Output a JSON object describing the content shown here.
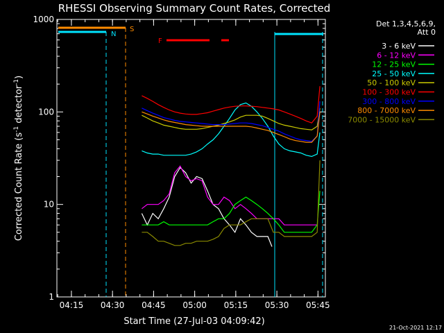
{
  "chart_data": {
    "type": "line",
    "title": "RHESSI Observing Summary Count Rates, Corrected",
    "xlabel": "Start Time (27-Jul-03 04:09:42)",
    "ylabel_main": "Corrected Count Rate (s",
    "ylabel_sup1": "-1",
    "ylabel_mid": " detector",
    "ylabel_sup2": "-1",
    "ylabel_end": ")",
    "y_scale": "log",
    "ylim": [
      1,
      1000
    ],
    "xlim_minutes": [
      0,
      98
    ],
    "x_ticks": [
      {
        "minute": 5.3,
        "label": "04:15"
      },
      {
        "minute": 20.3,
        "label": "04:30"
      },
      {
        "minute": 35.3,
        "label": "04:45"
      },
      {
        "minute": 50.3,
        "label": "05:00"
      },
      {
        "minute": 65.3,
        "label": "05:15"
      },
      {
        "minute": 80.3,
        "label": "05:30"
      },
      {
        "minute": 95.3,
        "label": "05:45"
      }
    ],
    "y_ticks": [
      {
        "value": 1,
        "label": "1"
      },
      {
        "value": 10,
        "label": "10"
      },
      {
        "value": 100,
        "label": "100"
      },
      {
        "value": 1000,
        "label": "1000"
      }
    ],
    "legend_header": [
      "Det 1,3,4,5,6,9,",
      "Att 0"
    ],
    "legend_position": "right",
    "series": [
      {
        "name": "3 - 6 keV",
        "color": "#ffffff",
        "points": [
          [
            31,
            8
          ],
          [
            33,
            6
          ],
          [
            35,
            8
          ],
          [
            37,
            7
          ],
          [
            39,
            9
          ],
          [
            41,
            12
          ],
          [
            43,
            20
          ],
          [
            45,
            25
          ],
          [
            47,
            22
          ],
          [
            49,
            17
          ],
          [
            51,
            20
          ],
          [
            53,
            19
          ],
          [
            55,
            14
          ],
          [
            57,
            10
          ],
          [
            59,
            9
          ],
          [
            61,
            7
          ],
          [
            63,
            6
          ],
          [
            65,
            5
          ],
          [
            67,
            7
          ],
          [
            69,
            6
          ],
          [
            71,
            5
          ],
          [
            73,
            4.5
          ],
          [
            75,
            4.5
          ],
          [
            77,
            4.5
          ],
          [
            78.5,
            3.5
          ]
        ]
      },
      {
        "name": "6 - 12 keV",
        "color": "#ff00ff",
        "points": [
          [
            31,
            9
          ],
          [
            33,
            10
          ],
          [
            35,
            10
          ],
          [
            37,
            10
          ],
          [
            39,
            11
          ],
          [
            41,
            13
          ],
          [
            43,
            22
          ],
          [
            45,
            26
          ],
          [
            47,
            20
          ],
          [
            49,
            18
          ],
          [
            51,
            19
          ],
          [
            53,
            18
          ],
          [
            55,
            12
          ],
          [
            57,
            10
          ],
          [
            59,
            10
          ],
          [
            61,
            12
          ],
          [
            63,
            11
          ],
          [
            65,
            9
          ],
          [
            67,
            10
          ],
          [
            69,
            9
          ],
          [
            71,
            8
          ],
          [
            73,
            7
          ],
          [
            75,
            7
          ],
          [
            77,
            7
          ],
          [
            79,
            7
          ],
          [
            81,
            7
          ],
          [
            83,
            6
          ],
          [
            85,
            6
          ],
          [
            87,
            6
          ],
          [
            89,
            6
          ],
          [
            91,
            6
          ],
          [
            93,
            6
          ],
          [
            95,
            6
          ]
        ]
      },
      {
        "name": "12 - 25 keV",
        "color": "#00ff00",
        "points": [
          [
            31,
            6
          ],
          [
            33,
            6
          ],
          [
            35,
            6
          ],
          [
            37,
            6
          ],
          [
            39,
            6.5
          ],
          [
            41,
            6
          ],
          [
            43,
            6
          ],
          [
            45,
            6
          ],
          [
            47,
            6
          ],
          [
            49,
            6
          ],
          [
            51,
            6
          ],
          [
            53,
            6
          ],
          [
            55,
            6
          ],
          [
            57,
            6.5
          ],
          [
            59,
            7
          ],
          [
            61,
            7
          ],
          [
            63,
            8
          ],
          [
            65,
            10
          ],
          [
            67,
            11
          ],
          [
            69,
            12
          ],
          [
            71,
            11
          ],
          [
            73,
            10
          ],
          [
            75,
            9
          ],
          [
            77,
            8
          ],
          [
            79,
            7
          ],
          [
            81,
            6
          ],
          [
            83,
            5
          ],
          [
            85,
            5
          ],
          [
            87,
            5
          ],
          [
            89,
            5
          ],
          [
            91,
            5
          ],
          [
            93,
            5
          ],
          [
            95,
            6
          ],
          [
            96,
            14
          ]
        ]
      },
      {
        "name": "25 - 50 keV",
        "color": "#00ffff",
        "points": [
          [
            31,
            38
          ],
          [
            33,
            36
          ],
          [
            35,
            35
          ],
          [
            37,
            35
          ],
          [
            39,
            34
          ],
          [
            41,
            34
          ],
          [
            43,
            34
          ],
          [
            45,
            34
          ],
          [
            47,
            34
          ],
          [
            49,
            35
          ],
          [
            51,
            37
          ],
          [
            53,
            40
          ],
          [
            55,
            45
          ],
          [
            57,
            50
          ],
          [
            59,
            58
          ],
          [
            61,
            70
          ],
          [
            63,
            85
          ],
          [
            65,
            105
          ],
          [
            67,
            120
          ],
          [
            69,
            125
          ],
          [
            71,
            115
          ],
          [
            73,
            100
          ],
          [
            75,
            85
          ],
          [
            77,
            70
          ],
          [
            79,
            55
          ],
          [
            81,
            45
          ],
          [
            83,
            40
          ],
          [
            85,
            38
          ],
          [
            87,
            37
          ],
          [
            89,
            36
          ],
          [
            91,
            34
          ],
          [
            93,
            33
          ],
          [
            95,
            35
          ],
          [
            96,
            60
          ]
        ]
      },
      {
        "name": "50 - 100 keV",
        "color": "#cccc00",
        "points": [
          [
            31,
            92
          ],
          [
            33,
            86
          ],
          [
            35,
            80
          ],
          [
            37,
            76
          ],
          [
            39,
            72
          ],
          [
            41,
            70
          ],
          [
            43,
            68
          ],
          [
            45,
            66
          ],
          [
            47,
            65
          ],
          [
            49,
            65
          ],
          [
            51,
            65
          ],
          [
            53,
            66
          ],
          [
            55,
            68
          ],
          [
            57,
            70
          ],
          [
            59,
            72
          ],
          [
            61,
            75
          ],
          [
            63,
            78
          ],
          [
            65,
            82
          ],
          [
            67,
            88
          ],
          [
            69,
            92
          ],
          [
            71,
            92
          ],
          [
            73,
            92
          ],
          [
            75,
            90
          ],
          [
            77,
            85
          ],
          [
            79,
            80
          ],
          [
            81,
            75
          ],
          [
            83,
            72
          ],
          [
            85,
            70
          ],
          [
            87,
            68
          ],
          [
            89,
            66
          ],
          [
            91,
            65
          ],
          [
            93,
            64
          ],
          [
            95,
            70
          ],
          [
            96,
            110
          ]
        ]
      },
      {
        "name": "100 - 300 keV",
        "color": "#ff0000",
        "points": [
          [
            31,
            150
          ],
          [
            33,
            140
          ],
          [
            35,
            130
          ],
          [
            37,
            120
          ],
          [
            39,
            112
          ],
          [
            41,
            105
          ],
          [
            43,
            100
          ],
          [
            45,
            97
          ],
          [
            47,
            95
          ],
          [
            49,
            94
          ],
          [
            51,
            94
          ],
          [
            53,
            96
          ],
          [
            55,
            98
          ],
          [
            57,
            102
          ],
          [
            59,
            106
          ],
          [
            61,
            110
          ],
          [
            63,
            113
          ],
          [
            65,
            115
          ],
          [
            67,
            116
          ],
          [
            69,
            116
          ],
          [
            71,
            115
          ],
          [
            73,
            114
          ],
          [
            75,
            112
          ],
          [
            77,
            110
          ],
          [
            79,
            108
          ],
          [
            81,
            105
          ],
          [
            83,
            100
          ],
          [
            85,
            95
          ],
          [
            87,
            90
          ],
          [
            89,
            85
          ],
          [
            91,
            80
          ],
          [
            93,
            76
          ],
          [
            95,
            90
          ],
          [
            96,
            190
          ]
        ]
      },
      {
        "name": "300 - 800 keV",
        "color": "#0000ff",
        "points": [
          [
            31,
            110
          ],
          [
            33,
            103
          ],
          [
            35,
            97
          ],
          [
            37,
            92
          ],
          [
            39,
            87
          ],
          [
            41,
            84
          ],
          [
            43,
            81
          ],
          [
            45,
            79
          ],
          [
            47,
            78
          ],
          [
            49,
            77
          ],
          [
            51,
            76
          ],
          [
            53,
            75
          ],
          [
            55,
            74
          ],
          [
            57,
            73
          ],
          [
            59,
            73
          ],
          [
            61,
            73
          ],
          [
            63,
            74
          ],
          [
            65,
            75
          ],
          [
            67,
            76
          ],
          [
            69,
            76
          ],
          [
            71,
            75
          ],
          [
            73,
            73
          ],
          [
            75,
            71
          ],
          [
            77,
            68
          ],
          [
            79,
            65
          ],
          [
            81,
            62
          ],
          [
            83,
            58
          ],
          [
            85,
            55
          ],
          [
            87,
            52
          ],
          [
            89,
            50
          ],
          [
            91,
            49
          ],
          [
            93,
            48
          ],
          [
            95,
            55
          ],
          [
            96,
            130
          ]
        ]
      },
      {
        "name": "800 - 7000 keV",
        "color": "#ff8c00",
        "points": [
          [
            31,
            100
          ],
          [
            33,
            95
          ],
          [
            35,
            90
          ],
          [
            37,
            86
          ],
          [
            39,
            82
          ],
          [
            41,
            79
          ],
          [
            43,
            77
          ],
          [
            45,
            75
          ],
          [
            47,
            73
          ],
          [
            49,
            72
          ],
          [
            51,
            71
          ],
          [
            53,
            70
          ],
          [
            55,
            70
          ],
          [
            57,
            70
          ],
          [
            59,
            70
          ],
          [
            61,
            70
          ],
          [
            63,
            70
          ],
          [
            65,
            70
          ],
          [
            67,
            70
          ],
          [
            69,
            70
          ],
          [
            71,
            69
          ],
          [
            73,
            67
          ],
          [
            75,
            65
          ],
          [
            77,
            63
          ],
          [
            79,
            60
          ],
          [
            81,
            57
          ],
          [
            83,
            54
          ],
          [
            85,
            51
          ],
          [
            87,
            49
          ],
          [
            89,
            48
          ],
          [
            91,
            47
          ],
          [
            93,
            47
          ],
          [
            95,
            55
          ],
          [
            96,
            100
          ]
        ]
      },
      {
        "name": "7000 - 15000 keV",
        "color": "#8b8b00",
        "points": [
          [
            31,
            5
          ],
          [
            33,
            5
          ],
          [
            35,
            4.5
          ],
          [
            37,
            4
          ],
          [
            39,
            4
          ],
          [
            41,
            3.8
          ],
          [
            43,
            3.6
          ],
          [
            45,
            3.6
          ],
          [
            47,
            3.8
          ],
          [
            49,
            3.8
          ],
          [
            51,
            4
          ],
          [
            53,
            4
          ],
          [
            55,
            4
          ],
          [
            57,
            4.2
          ],
          [
            59,
            4.5
          ],
          [
            61,
            5.5
          ],
          [
            63,
            6
          ],
          [
            65,
            6
          ],
          [
            67,
            6
          ],
          [
            69,
            6.5
          ],
          [
            71,
            7
          ],
          [
            73,
            7
          ],
          [
            75,
            7
          ],
          [
            77,
            7
          ],
          [
            79,
            5
          ],
          [
            81,
            5
          ],
          [
            83,
            4.5
          ],
          [
            85,
            4.5
          ],
          [
            87,
            4.5
          ],
          [
            89,
            4.5
          ],
          [
            91,
            4.5
          ],
          [
            93,
            4.5
          ],
          [
            95,
            5
          ],
          [
            96,
            30
          ]
        ]
      }
    ],
    "annotations": [
      {
        "label": "N",
        "color": "#00e5ff"
      },
      {
        "label": "S",
        "color": "#ff8c00"
      },
      {
        "label": "F",
        "color": "#ff0000"
      }
    ],
    "footer_timestamp": "21-Oct-2021 12:17"
  }
}
